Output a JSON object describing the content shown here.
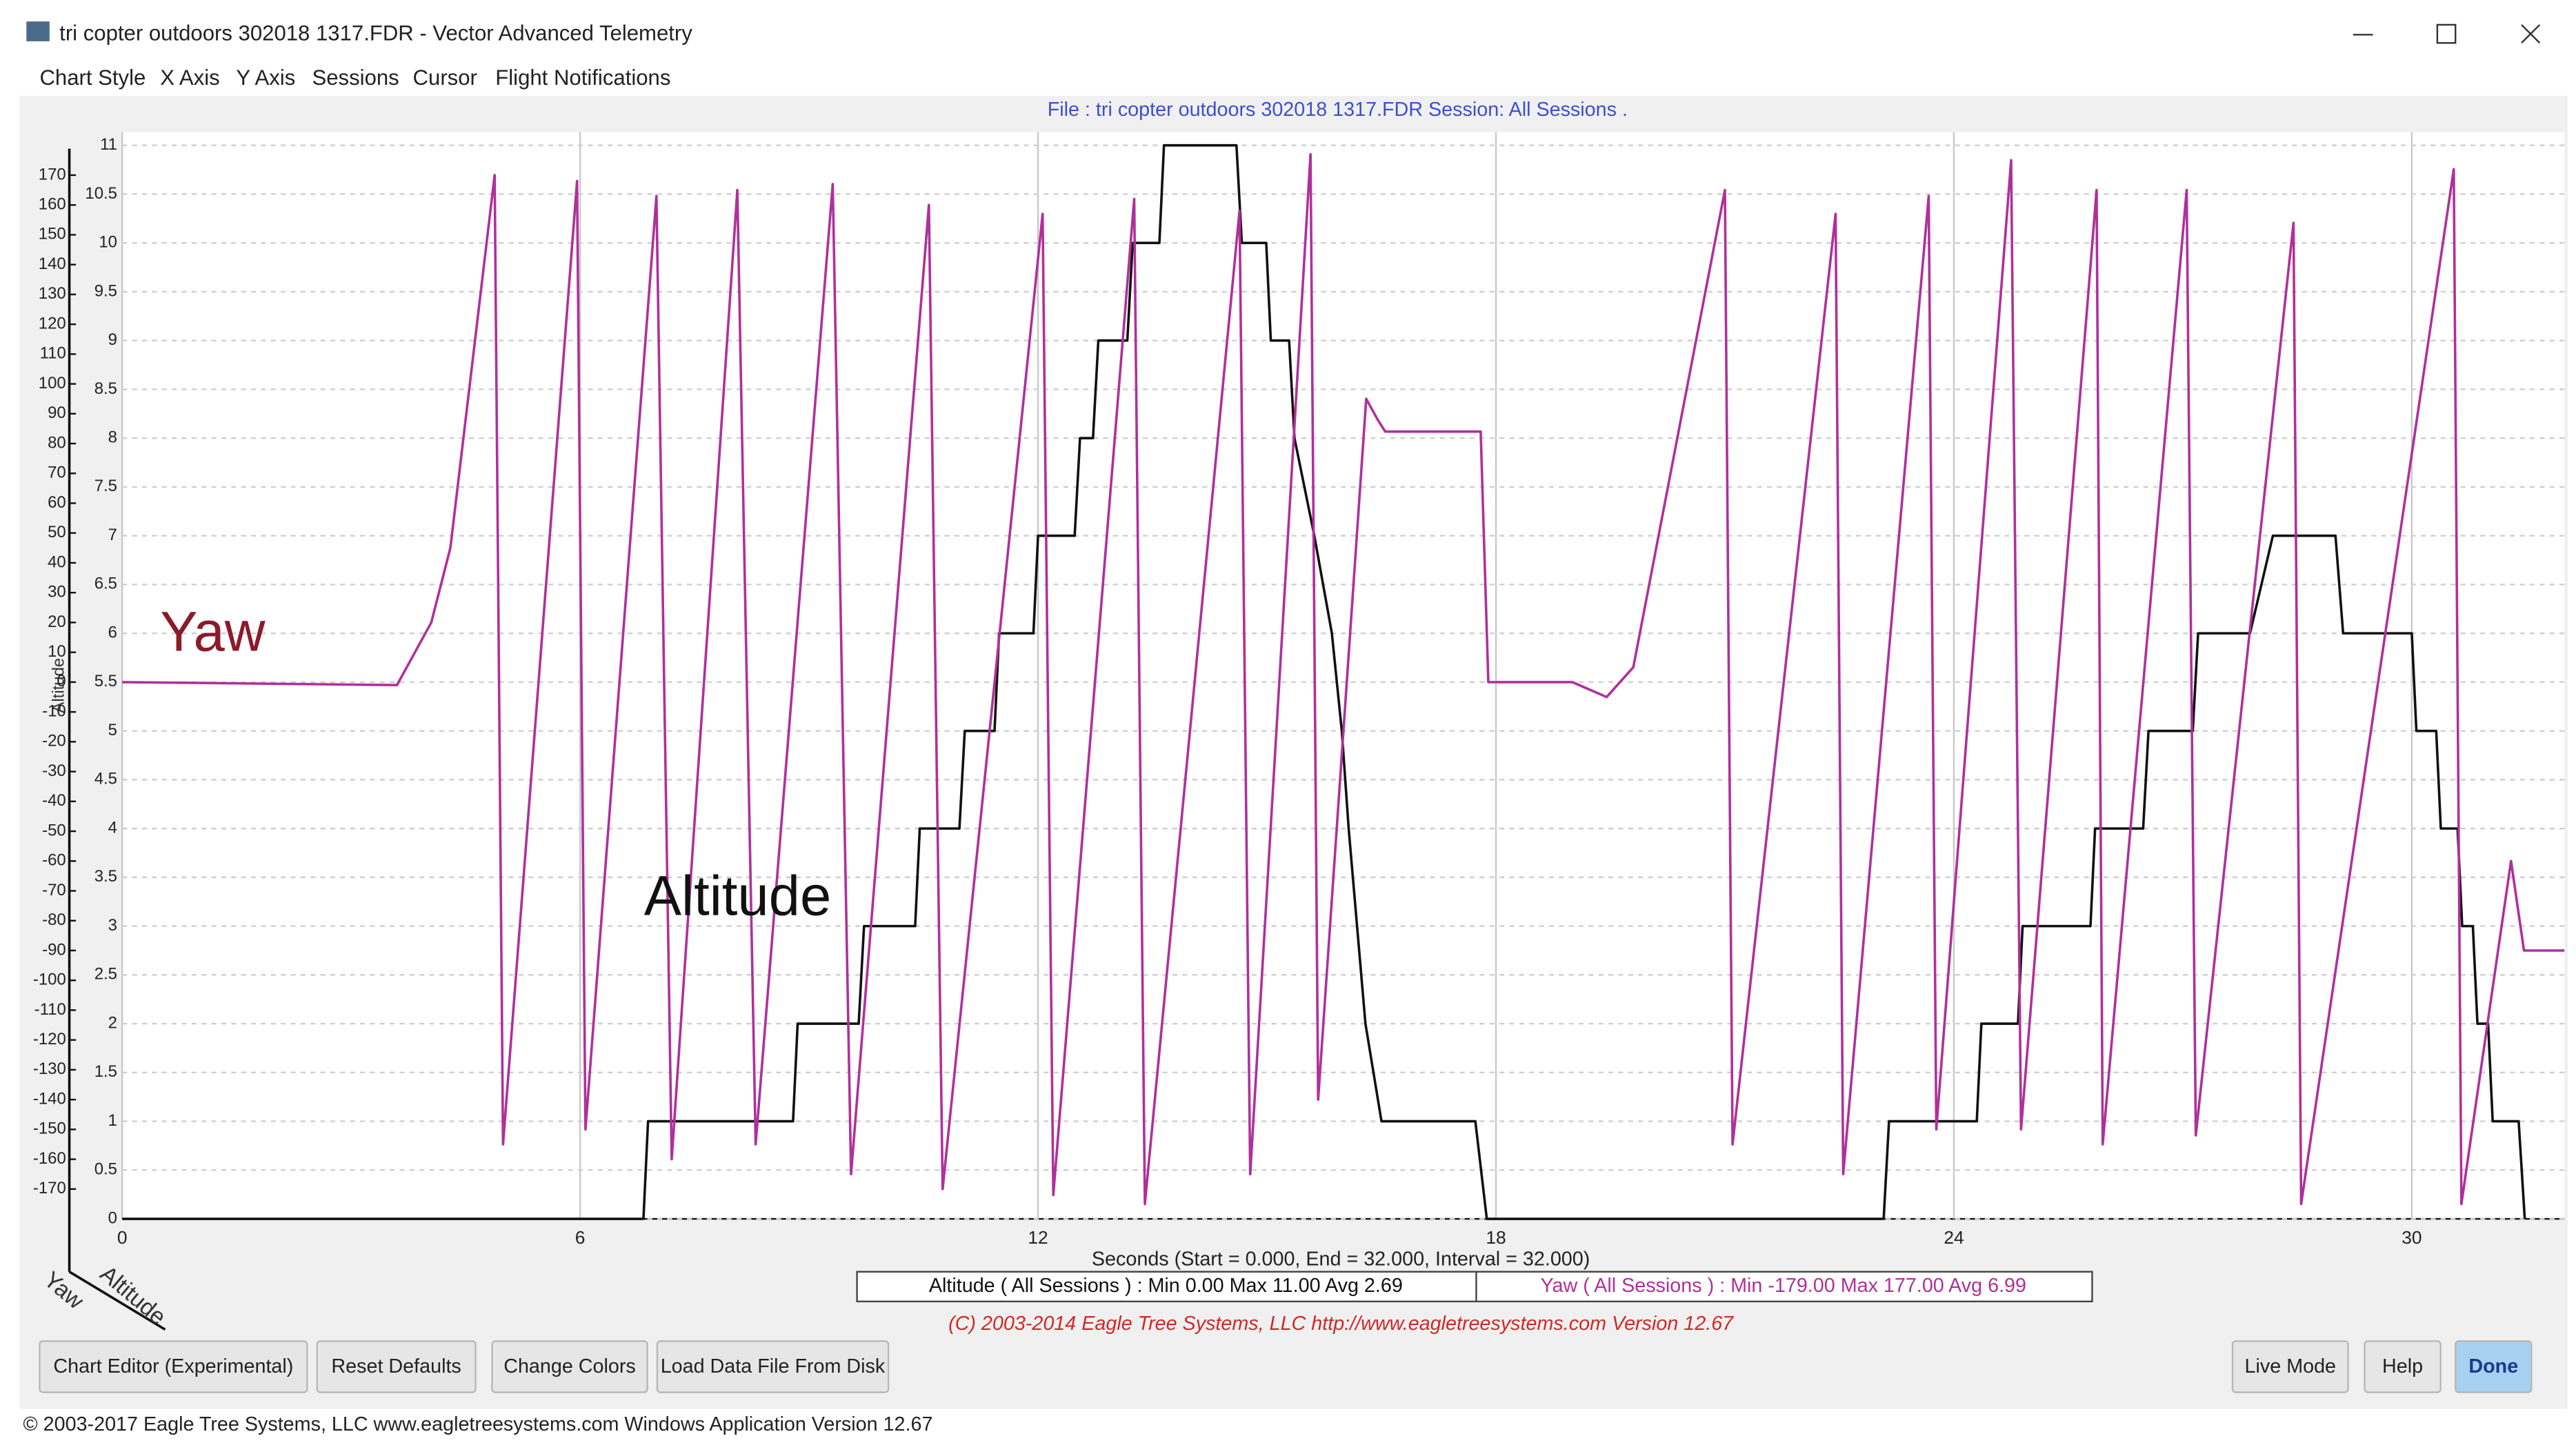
{
  "window": {
    "title": "tri copter outdoors 302018 1317.FDR - Vector Advanced Telemetry"
  },
  "menu": [
    "Chart Style",
    "X Axis",
    "Y Axis",
    "Sessions",
    "Cursor",
    "Flight Notifications"
  ],
  "chart_data": {
    "type": "line",
    "subtitle": "File : tri copter outdoors 302018 1317.FDR   Session: All Sessions .",
    "x_label": "Seconds (Start = 0.000,  End = 32.000,  Interval = 32.000)",
    "y_label": "Altitude",
    "y2_label": "Yaw",
    "xlim": [
      0,
      32
    ],
    "xticks": [
      0,
      6,
      12,
      18,
      24,
      30
    ],
    "ylim": [
      0,
      11
    ],
    "yticks": [
      0,
      0.5,
      1,
      1.5,
      2,
      2.5,
      3,
      3.5,
      4,
      4.5,
      5,
      5.5,
      6,
      6.5,
      7,
      7.5,
      8,
      8.5,
      9,
      9.5,
      10,
      10.5,
      11
    ],
    "y2lim": [
      -180,
      180
    ],
    "y2ticks": [
      -170,
      -160,
      -150,
      -140,
      -130,
      -120,
      -110,
      -100,
      -90,
      -80,
      -70,
      -60,
      -50,
      -40,
      -30,
      -20,
      -10,
      0,
      10,
      20,
      30,
      40,
      50,
      60,
      70,
      80,
      90,
      100,
      110,
      120,
      130,
      140,
      150,
      160,
      170
    ],
    "grid": true,
    "series": [
      {
        "name": "Altitude",
        "color": "#111111",
        "stats": "Altitude ( All Sessions ) : Min 0.00   Max 11.00   Avg 2.69",
        "x": [
          0,
          6.83,
          6.89,
          8.79,
          8.85,
          9.65,
          9.72,
          10.39,
          10.45,
          10.97,
          11.04,
          11.43,
          11.49,
          11.94,
          12.0,
          12.48,
          12.55,
          12.72,
          12.79,
          13.17,
          13.24,
          13.59,
          13.65,
          14.6,
          14.67,
          14.99,
          15.05,
          15.29,
          15.36,
          15.62,
          15.85,
          15.98,
          16.07,
          16.18,
          16.29,
          16.5,
          17.73,
          17.88,
          23.08,
          23.15,
          24.3,
          24.36,
          24.84,
          24.9,
          25.79,
          25.85,
          26.48,
          26.55,
          27.13,
          27.2,
          27.88,
          28.18,
          29.0,
          29.1,
          30.0,
          30.06,
          30.32,
          30.38,
          30.6,
          30.66,
          30.8,
          30.86,
          31.0,
          31.06,
          31.4,
          31.48
        ],
        "values": [
          0,
          0,
          1,
          1,
          2,
          2,
          3,
          3,
          4,
          4,
          5,
          5,
          6,
          6,
          7,
          7,
          8,
          8,
          9,
          9,
          10,
          10,
          11,
          11,
          10,
          10,
          9,
          9,
          8,
          7,
          6,
          5,
          4,
          3,
          2,
          1,
          1,
          0,
          0,
          1,
          1,
          2,
          2,
          3,
          3,
          4,
          4,
          5,
          5,
          6,
          6,
          7,
          7,
          6,
          6,
          5,
          5,
          4,
          4,
          3,
          3,
          2,
          2,
          1,
          1,
          0
        ]
      },
      {
        "name": "Yaw",
        "color": "#b0309a",
        "axis": "y2",
        "stats": "Yaw ( All Sessions ) : Min -179.00   Max 177.00   Avg 6.99",
        "x": [
          0,
          3.6,
          4.05,
          4.3,
          4.88,
          4.99,
          5.96,
          6.07,
          7.0,
          7.2,
          8.06,
          8.3,
          9.31,
          9.55,
          10.57,
          10.75,
          12.06,
          12.2,
          13.26,
          13.4,
          14.64,
          14.78,
          15.57,
          15.67,
          16.3,
          16.45,
          16.55,
          17.8,
          17.9,
          19.0,
          19.45,
          19.8,
          21.0,
          21.1,
          22.45,
          22.55,
          23.67,
          23.77,
          24.75,
          24.88,
          25.87,
          25.95,
          27.05,
          27.17,
          28.45,
          28.55,
          30.55,
          30.65,
          31.3,
          31.47,
          32
        ],
        "values": [
          0,
          -1,
          20,
          45,
          170,
          -155,
          168,
          -150,
          163,
          -160,
          165,
          -155,
          167,
          -165,
          160,
          -170,
          157,
          -172,
          162,
          -175,
          158,
          -165,
          177,
          -140,
          95,
          88,
          84,
          84,
          0,
          0,
          -5,
          5,
          165,
          -155,
          157,
          -165,
          163,
          -150,
          175,
          -150,
          165,
          -155,
          165,
          -152,
          154,
          -175,
          172,
          -175,
          -60,
          -90,
          -90
        ]
      }
    ],
    "copyright": "(C) 2003-2014 Eagle Tree Systems, LLC  http://www.eagletreesystems.com  Version 12.67"
  },
  "buttons": [
    "Chart Editor (Experimental)",
    "Reset Defaults",
    "Change Colors",
    "Load Data File From Disk",
    "Live Mode",
    "Help",
    "Done"
  ],
  "status_bar": "© 2003-2017 Eagle Tree Systems, LLC    www.eagletreesystems.com    Windows Application Version 12.67"
}
